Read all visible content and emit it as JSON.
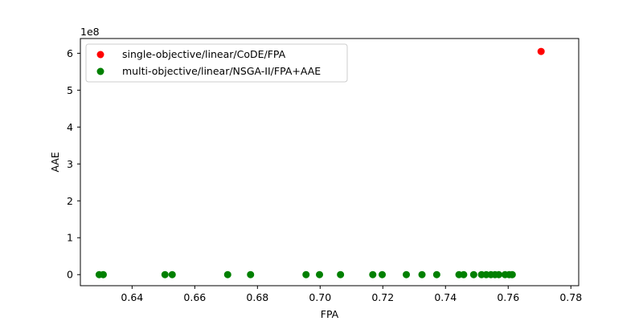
{
  "chart_data": {
    "type": "scatter",
    "xlabel": "FPA",
    "ylabel": "AAE",
    "y_offset_label": "1e8",
    "xlim": [
      0.6235,
      0.7825
    ],
    "ylim": [
      -0.3,
      6.4
    ],
    "x_ticks": [
      0.64,
      0.66,
      0.68,
      0.7,
      0.72,
      0.74,
      0.76,
      0.78
    ],
    "x_tick_labels": [
      "0.64",
      "0.66",
      "0.68",
      "0.70",
      "0.72",
      "0.74",
      "0.76",
      "0.78"
    ],
    "y_ticks": [
      0,
      1,
      2,
      3,
      4,
      5,
      6
    ],
    "y_tick_labels": [
      "0",
      "1",
      "2",
      "3",
      "4",
      "5",
      "6"
    ],
    "grid": false,
    "legend_position": "upper-left",
    "series": [
      {
        "name": "single-objective/linear/CoDE/FPA",
        "color": "#ff0000",
        "points": [
          {
            "x": 0.7705,
            "y": 6.05
          }
        ]
      },
      {
        "name": "multi-objective/linear/NSGA-II/FPA+AAE",
        "color": "#008000",
        "points": [
          {
            "x": 0.6295,
            "y": 0
          },
          {
            "x": 0.6308,
            "y": 0
          },
          {
            "x": 0.6505,
            "y": 0
          },
          {
            "x": 0.6528,
            "y": 0
          },
          {
            "x": 0.6705,
            "y": 0
          },
          {
            "x": 0.6778,
            "y": 0
          },
          {
            "x": 0.6955,
            "y": 0
          },
          {
            "x": 0.6998,
            "y": 0
          },
          {
            "x": 0.7065,
            "y": 0
          },
          {
            "x": 0.7168,
            "y": 0
          },
          {
            "x": 0.7198,
            "y": 0
          },
          {
            "x": 0.7275,
            "y": 0
          },
          {
            "x": 0.7325,
            "y": 0
          },
          {
            "x": 0.7372,
            "y": 0
          },
          {
            "x": 0.7443,
            "y": 0
          },
          {
            "x": 0.7458,
            "y": 0
          },
          {
            "x": 0.749,
            "y": 0
          },
          {
            "x": 0.7515,
            "y": 0
          },
          {
            "x": 0.753,
            "y": 0
          },
          {
            "x": 0.7545,
            "y": 0
          },
          {
            "x": 0.7558,
            "y": 0
          },
          {
            "x": 0.757,
            "y": 0
          },
          {
            "x": 0.759,
            "y": 0
          },
          {
            "x": 0.7603,
            "y": 0
          },
          {
            "x": 0.7613,
            "y": 0
          }
        ]
      }
    ]
  }
}
